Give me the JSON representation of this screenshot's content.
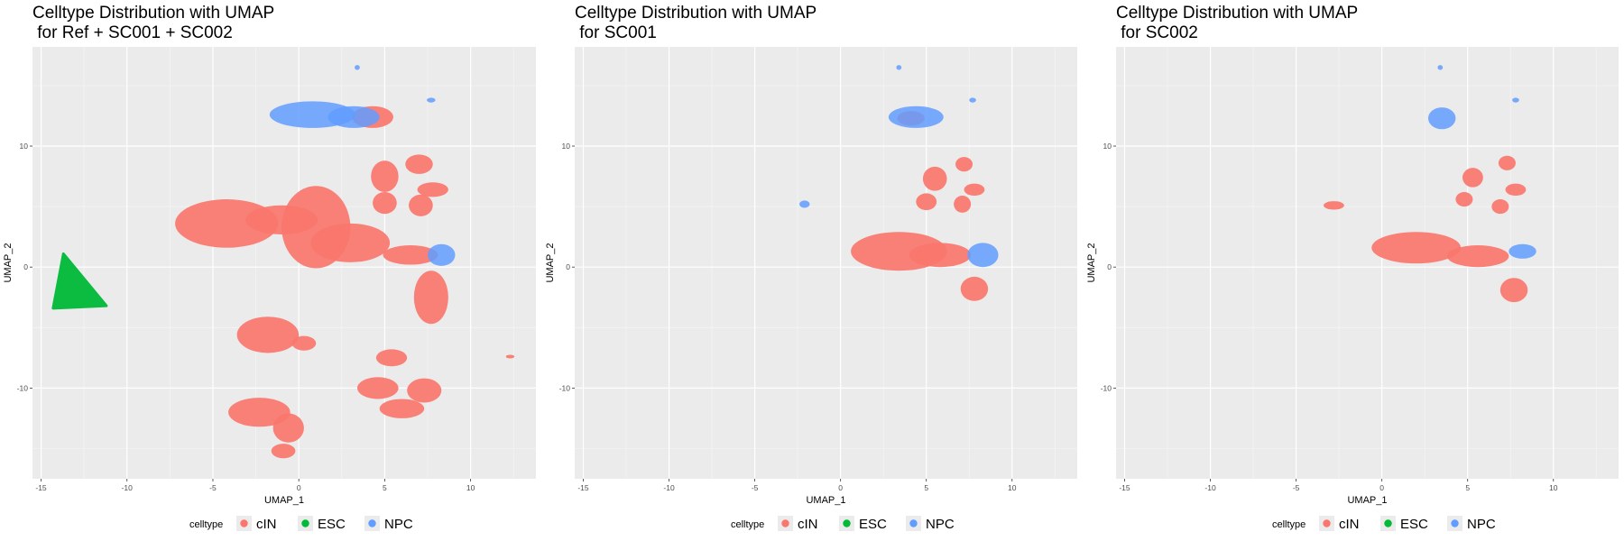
{
  "legend": {
    "title": "celltype",
    "entries": [
      {
        "label": "cIN",
        "color": "#F8766D"
      },
      {
        "label": "ESC",
        "color": "#00BA38"
      },
      {
        "label": "NPC",
        "color": "#619CFF"
      }
    ]
  },
  "chart_data": [
    {
      "type": "scatter",
      "title": "Celltype Distribution with UMAP\n for Ref + SC001 + SC002",
      "xlabel": "UMAP_1",
      "ylabel": "UMAP_2",
      "xlim": [
        -15.5,
        13.8
      ],
      "ylim": [
        -17.5,
        18.2
      ],
      "xticks": [
        -15,
        -10,
        -5,
        0,
        5,
        10
      ],
      "yticks": [
        -10,
        0,
        10
      ],
      "grid": true,
      "legend_position": "bottom",
      "clusters": [
        {
          "series": "ESC",
          "shape": "triangle",
          "points": [
            [
              -13.7,
              1.1
            ],
            [
              -14.3,
              -3.4
            ],
            [
              -11.2,
              -3.2
            ]
          ]
        },
        {
          "series": "cIN",
          "shape": "ellipse",
          "cx": -4.2,
          "cy": 3.6,
          "rx": 3.0,
          "ry": 2.0
        },
        {
          "series": "cIN",
          "shape": "ellipse",
          "cx": -1.0,
          "cy": 3.9,
          "rx": 2.1,
          "ry": 1.2
        },
        {
          "series": "cIN",
          "shape": "ellipse",
          "cx": 1.0,
          "cy": 3.3,
          "rx": 2.0,
          "ry": 3.4
        },
        {
          "series": "cIN",
          "shape": "ellipse",
          "cx": 3.0,
          "cy": 2.0,
          "rx": 2.3,
          "ry": 1.6
        },
        {
          "series": "cIN",
          "shape": "ellipse",
          "cx": 6.5,
          "cy": 1.0,
          "rx": 1.6,
          "ry": 0.8
        },
        {
          "series": "cIN",
          "shape": "ellipse",
          "cx": 7.7,
          "cy": -2.5,
          "rx": 1.0,
          "ry": 2.2
        },
        {
          "series": "cIN",
          "shape": "ellipse",
          "cx": 5.0,
          "cy": 7.5,
          "rx": 0.8,
          "ry": 1.3
        },
        {
          "series": "cIN",
          "shape": "ellipse",
          "cx": 7.0,
          "cy": 8.5,
          "rx": 0.8,
          "ry": 0.8
        },
        {
          "series": "cIN",
          "shape": "ellipse",
          "cx": 7.8,
          "cy": 6.4,
          "rx": 0.9,
          "ry": 0.6
        },
        {
          "series": "cIN",
          "shape": "ellipse",
          "cx": 5.0,
          "cy": 5.3,
          "rx": 0.7,
          "ry": 0.9
        },
        {
          "series": "cIN",
          "shape": "ellipse",
          "cx": 7.1,
          "cy": 5.1,
          "rx": 0.7,
          "ry": 0.9
        },
        {
          "series": "cIN",
          "shape": "ellipse",
          "cx": 4.3,
          "cy": 12.4,
          "rx": 1.2,
          "ry": 0.9
        },
        {
          "series": "cIN",
          "shape": "ellipse",
          "cx": -1.8,
          "cy": -5.6,
          "rx": 1.8,
          "ry": 1.5
        },
        {
          "series": "cIN",
          "shape": "ellipse",
          "cx": 0.3,
          "cy": -6.3,
          "rx": 0.7,
          "ry": 0.6
        },
        {
          "series": "cIN",
          "shape": "ellipse",
          "cx": -2.3,
          "cy": -12.0,
          "rx": 1.8,
          "ry": 1.2
        },
        {
          "series": "cIN",
          "shape": "ellipse",
          "cx": -0.6,
          "cy": -13.3,
          "rx": 0.9,
          "ry": 1.2
        },
        {
          "series": "cIN",
          "shape": "ellipse",
          "cx": -0.9,
          "cy": -15.2,
          "rx": 0.7,
          "ry": 0.6
        },
        {
          "series": "cIN",
          "shape": "ellipse",
          "cx": 5.4,
          "cy": -7.5,
          "rx": 0.9,
          "ry": 0.7
        },
        {
          "series": "cIN",
          "shape": "ellipse",
          "cx": 4.6,
          "cy": -10.0,
          "rx": 1.2,
          "ry": 0.9
        },
        {
          "series": "cIN",
          "shape": "ellipse",
          "cx": 7.3,
          "cy": -10.2,
          "rx": 1.0,
          "ry": 1.0
        },
        {
          "series": "cIN",
          "shape": "ellipse",
          "cx": 6.0,
          "cy": -11.7,
          "rx": 1.3,
          "ry": 0.8
        },
        {
          "series": "cIN",
          "shape": "ellipse",
          "cx": 12.3,
          "cy": -7.4,
          "rx": 0.25,
          "ry": 0.15
        },
        {
          "series": "NPC",
          "shape": "ellipse",
          "cx": 0.8,
          "cy": 12.6,
          "rx": 2.5,
          "ry": 1.1
        },
        {
          "series": "NPC",
          "shape": "ellipse",
          "cx": 3.2,
          "cy": 12.4,
          "rx": 1.5,
          "ry": 0.9
        },
        {
          "series": "NPC",
          "shape": "ellipse",
          "cx": 8.3,
          "cy": 1.0,
          "rx": 0.8,
          "ry": 0.9
        },
        {
          "series": "NPC",
          "shape": "ellipse",
          "cx": 3.4,
          "cy": 16.5,
          "rx": 0.15,
          "ry": 0.2
        },
        {
          "series": "NPC",
          "shape": "ellipse",
          "cx": 7.7,
          "cy": 13.8,
          "rx": 0.25,
          "ry": 0.2
        }
      ]
    },
    {
      "type": "scatter",
      "title": "Celltype Distribution with UMAP\n for SC001",
      "xlabel": "UMAP_1",
      "ylabel": "UMAP_2",
      "xlim": [
        -15.5,
        13.8
      ],
      "ylim": [
        -17.5,
        18.2
      ],
      "xticks": [
        -15,
        -10,
        -5,
        0,
        5,
        10
      ],
      "yticks": [
        -10,
        0,
        10
      ],
      "grid": true,
      "legend_position": "bottom",
      "clusters": [
        {
          "series": "cIN",
          "shape": "ellipse",
          "cx": 3.4,
          "cy": 1.3,
          "rx": 2.8,
          "ry": 1.6
        },
        {
          "series": "cIN",
          "shape": "ellipse",
          "cx": 5.8,
          "cy": 1.0,
          "rx": 1.8,
          "ry": 1.0
        },
        {
          "series": "cIN",
          "shape": "ellipse",
          "cx": 7.8,
          "cy": -1.8,
          "rx": 0.8,
          "ry": 1.0
        },
        {
          "series": "cIN",
          "shape": "ellipse",
          "cx": 5.5,
          "cy": 7.3,
          "rx": 0.7,
          "ry": 1.0
        },
        {
          "series": "cIN",
          "shape": "ellipse",
          "cx": 7.2,
          "cy": 8.5,
          "rx": 0.5,
          "ry": 0.6
        },
        {
          "series": "cIN",
          "shape": "ellipse",
          "cx": 7.8,
          "cy": 6.4,
          "rx": 0.6,
          "ry": 0.5
        },
        {
          "series": "cIN",
          "shape": "ellipse",
          "cx": 5.0,
          "cy": 5.4,
          "rx": 0.6,
          "ry": 0.7
        },
        {
          "series": "cIN",
          "shape": "ellipse",
          "cx": 7.1,
          "cy": 5.2,
          "rx": 0.5,
          "ry": 0.7
        },
        {
          "series": "cIN",
          "shape": "ellipse",
          "cx": 4.1,
          "cy": 12.3,
          "rx": 0.8,
          "ry": 0.6
        },
        {
          "series": "NPC",
          "shape": "ellipse",
          "cx": 4.4,
          "cy": 12.4,
          "rx": 1.6,
          "ry": 0.9
        },
        {
          "series": "NPC",
          "shape": "ellipse",
          "cx": 8.3,
          "cy": 1.0,
          "rx": 0.9,
          "ry": 1.0
        },
        {
          "series": "NPC",
          "shape": "ellipse",
          "cx": -2.1,
          "cy": 5.2,
          "rx": 0.3,
          "ry": 0.3
        },
        {
          "series": "NPC",
          "shape": "ellipse",
          "cx": 3.4,
          "cy": 16.5,
          "rx": 0.15,
          "ry": 0.2
        },
        {
          "series": "NPC",
          "shape": "ellipse",
          "cx": 7.7,
          "cy": 13.8,
          "rx": 0.2,
          "ry": 0.2
        }
      ]
    },
    {
      "type": "scatter",
      "title": "Celltype Distribution with UMAP\n for SC002",
      "xlabel": "UMAP_1",
      "ylabel": "UMAP_2",
      "xlim": [
        -15.5,
        13.8
      ],
      "ylim": [
        -17.5,
        18.2
      ],
      "xticks": [
        -15,
        -10,
        -5,
        0,
        5,
        10
      ],
      "yticks": [
        -10,
        0,
        10
      ],
      "grid": true,
      "legend_position": "bottom",
      "clusters": [
        {
          "series": "cIN",
          "shape": "ellipse",
          "cx": 2.0,
          "cy": 1.6,
          "rx": 2.6,
          "ry": 1.3
        },
        {
          "series": "cIN",
          "shape": "ellipse",
          "cx": 5.6,
          "cy": 0.9,
          "rx": 1.8,
          "ry": 0.9
        },
        {
          "series": "cIN",
          "shape": "ellipse",
          "cx": 7.7,
          "cy": -1.9,
          "rx": 0.8,
          "ry": 1.0
        },
        {
          "series": "cIN",
          "shape": "ellipse",
          "cx": -2.8,
          "cy": 5.1,
          "rx": 0.6,
          "ry": 0.35
        },
        {
          "series": "cIN",
          "shape": "ellipse",
          "cx": 5.3,
          "cy": 7.4,
          "rx": 0.6,
          "ry": 0.8
        },
        {
          "series": "cIN",
          "shape": "ellipse",
          "cx": 7.3,
          "cy": 8.6,
          "rx": 0.5,
          "ry": 0.6
        },
        {
          "series": "cIN",
          "shape": "ellipse",
          "cx": 7.8,
          "cy": 6.4,
          "rx": 0.6,
          "ry": 0.5
        },
        {
          "series": "cIN",
          "shape": "ellipse",
          "cx": 4.8,
          "cy": 5.6,
          "rx": 0.5,
          "ry": 0.6
        },
        {
          "series": "cIN",
          "shape": "ellipse",
          "cx": 6.9,
          "cy": 5.0,
          "rx": 0.5,
          "ry": 0.6
        },
        {
          "series": "NPC",
          "shape": "ellipse",
          "cx": 3.5,
          "cy": 12.3,
          "rx": 0.8,
          "ry": 0.9
        },
        {
          "series": "NPC",
          "shape": "ellipse",
          "cx": 8.2,
          "cy": 1.3,
          "rx": 0.8,
          "ry": 0.6
        },
        {
          "series": "NPC",
          "shape": "ellipse",
          "cx": 3.4,
          "cy": 16.5,
          "rx": 0.15,
          "ry": 0.2
        },
        {
          "series": "NPC",
          "shape": "ellipse",
          "cx": 7.8,
          "cy": 13.8,
          "rx": 0.2,
          "ry": 0.2
        }
      ]
    }
  ]
}
